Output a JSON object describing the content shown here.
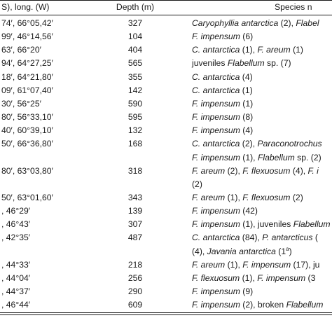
{
  "header": {
    "coord": "S), long. (W)",
    "depth": "Depth (m)",
    "species": "Species n"
  },
  "rows": [
    {
      "coord": "74′, 66°05,42′",
      "depth": "327",
      "species": [
        {
          "t": "Caryophyllia antarctica",
          "i": true
        },
        {
          "t": " (2), "
        },
        {
          "t": "Flabel",
          "i": true
        }
      ]
    },
    {
      "coord": "99′, 46°14,56′",
      "depth": "104",
      "species": [
        {
          "t": "F. impensum",
          "i": true
        },
        {
          "t": " (6)"
        }
      ]
    },
    {
      "coord": "63′, 66°20′",
      "depth": "404",
      "species": [
        {
          "t": "C. antarctica",
          "i": true
        },
        {
          "t": " (1), "
        },
        {
          "t": "F. areum",
          "i": true
        },
        {
          "t": " (1)"
        }
      ]
    },
    {
      "coord": "94′, 64°27,25′",
      "depth": "565",
      "species": [
        {
          "t": "juveniles "
        },
        {
          "t": "Flabellum",
          "i": true
        },
        {
          "t": " sp. (7)"
        }
      ]
    },
    {
      "coord": "18′, 64°21,80′",
      "depth": "355",
      "species": [
        {
          "t": "C. antarctica",
          "i": true
        },
        {
          "t": " (4)"
        }
      ]
    },
    {
      "coord": "09′, 61°07,40′",
      "depth": "142",
      "species": [
        {
          "t": "C. antarctica",
          "i": true
        },
        {
          "t": " (1)"
        }
      ]
    },
    {
      "coord": "30′, 56°25′",
      "depth": "590",
      "species": [
        {
          "t": "F. impensum",
          "i": true
        },
        {
          "t": " (1)"
        }
      ]
    },
    {
      "coord": "80′, 56°33,10′",
      "depth": "595",
      "species": [
        {
          "t": "F. impensum",
          "i": true
        },
        {
          "t": " (8)"
        }
      ]
    },
    {
      "coord": "40′, 60°39,10′",
      "depth": "132",
      "species": [
        {
          "t": "F. impensum",
          "i": true
        },
        {
          "t": " (4)"
        }
      ]
    },
    {
      "coord": "50′, 66°36,80′",
      "depth": "168",
      "species": [
        {
          "t": "C. antarctica",
          "i": true
        },
        {
          "t": " (2), "
        },
        {
          "t": "Paraconotrochus",
          "i": true
        }
      ]
    },
    {
      "coord": "",
      "depth": "",
      "species": [
        {
          "t": "F. impensum",
          "i": true
        },
        {
          "t": " (1), "
        },
        {
          "t": "Flabellum",
          "i": true
        },
        {
          "t": " sp. (2)"
        }
      ]
    },
    {
      "coord": "80′, 63°03,80′",
      "depth": "318",
      "species": [
        {
          "t": "F. areum",
          "i": true
        },
        {
          "t": " (2), "
        },
        {
          "t": "F. flexuosum",
          "i": true
        },
        {
          "t": " (4), "
        },
        {
          "t": "F. i",
          "i": true
        }
      ]
    },
    {
      "coord": "",
      "depth": "",
      "species": [
        {
          "t": "(2)"
        }
      ]
    },
    {
      "coord": "50′, 63°01,60′",
      "depth": "343",
      "species": [
        {
          "t": "F. areum",
          "i": true
        },
        {
          "t": " (1), "
        },
        {
          "t": "F. flexuosum",
          "i": true
        },
        {
          "t": " (2)"
        }
      ]
    },
    {
      "coord": ", 46°29′",
      "depth": "139",
      "species": [
        {
          "t": "F. impensum",
          "i": true
        },
        {
          "t": " (42)"
        }
      ]
    },
    {
      "coord": ", 46°43′",
      "depth": "307",
      "species": [
        {
          "t": "F. impensum",
          "i": true
        },
        {
          "t": " (1), juveniles "
        },
        {
          "t": "Flabellum",
          "i": true
        }
      ]
    },
    {
      "coord": ", 42°35′",
      "depth": "487",
      "species": [
        {
          "t": "C. antarctica",
          "i": true
        },
        {
          "t": " (84), "
        },
        {
          "t": "P. antarcticus",
          "i": true
        },
        {
          "t": " ("
        }
      ]
    },
    {
      "coord": "",
      "depth": "",
      "species": [
        {
          "t": "(4), "
        },
        {
          "t": "Javania antarctica",
          "i": true
        },
        {
          "t": " (1"
        },
        {
          "t": "a",
          "sup": true
        },
        {
          "t": ")"
        }
      ]
    },
    {
      "coord": ", 44°33′",
      "depth": "218",
      "species": [
        {
          "t": "F. areum",
          "i": true
        },
        {
          "t": " (1), "
        },
        {
          "t": "F. impensum",
          "i": true
        },
        {
          "t": " (17), ju"
        }
      ]
    },
    {
      "coord": ", 44°04′",
      "depth": "256",
      "species": [
        {
          "t": "F. flexuosum",
          "i": true
        },
        {
          "t": " (1), "
        },
        {
          "t": "F. impensum",
          "i": true
        },
        {
          "t": " (3"
        }
      ]
    },
    {
      "coord": ", 44°37′",
      "depth": "290",
      "species": [
        {
          "t": "F. impensum",
          "i": true
        },
        {
          "t": " (9)"
        }
      ]
    },
    {
      "coord": ", 46°44′",
      "depth": "609",
      "species": [
        {
          "t": "F. impensum",
          "i": true
        },
        {
          "t": " (2), broken "
        },
        {
          "t": "Flabellum",
          "i": true
        }
      ]
    }
  ]
}
